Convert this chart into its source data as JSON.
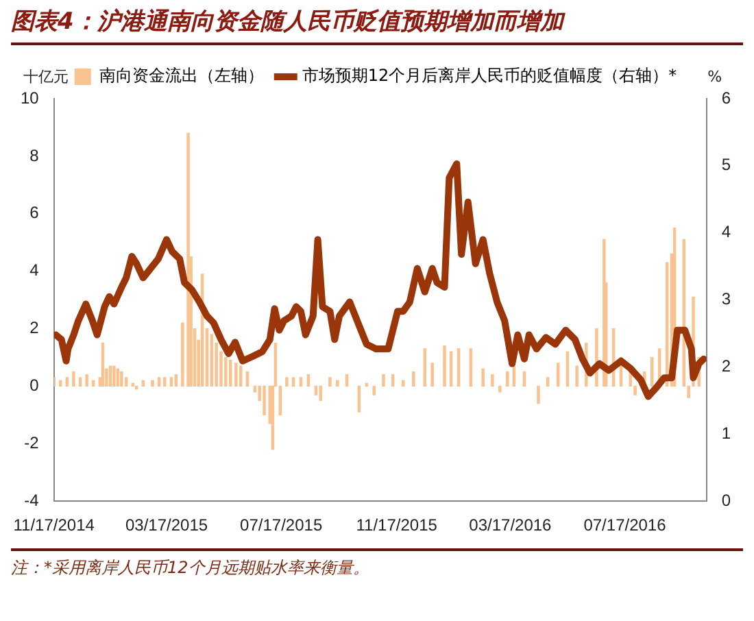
{
  "chart_data": {
    "type": "bar",
    "title": "图表4：沪港通南向资金随人民币贬值预期增加而增加",
    "ylabel": "十亿元",
    "y2label": "%",
    "annotations": [
      "注：*采用离岸人民币12个月远期贴水率来衡量。"
    ],
    "xlim": [
      "2014-11-17",
      "2016-10-12"
    ],
    "xticks": [
      {
        "value": "2014-11-17",
        "label": "11/17/2014"
      },
      {
        "value": "2015-03-17",
        "label": "03/17/2015"
      },
      {
        "value": "2015-07-17",
        "label": "07/17/2015"
      },
      {
        "value": "2015-11-17",
        "label": "11/17/2015"
      },
      {
        "value": "2016-03-17",
        "label": "03/17/2016"
      },
      {
        "value": "2016-07-17",
        "label": "07/17/2016"
      }
    ],
    "ylim": [
      -4,
      10
    ],
    "yticks": [
      -4,
      -2,
      0,
      2,
      4,
      6,
      8,
      10
    ],
    "y2lim": [
      0,
      6
    ],
    "y2ticks": [
      0,
      1,
      2,
      3,
      4,
      5,
      6
    ],
    "grid": false,
    "legend": "top",
    "marker": "none",
    "series": [
      {
        "name": "南向资金流出（左轴）",
        "color": "#f8c391",
        "x": [
          "2014-11-17",
          "2014-11-24",
          "2014-12-01",
          "2014-12-08",
          "2014-12-15",
          "2014-12-22",
          "2014-12-29",
          "2015-01-05",
          "2015-01-08",
          "2015-01-12",
          "2015-01-16",
          "2015-01-20",
          "2015-01-24",
          "2015-01-28",
          "2015-02-02",
          "2015-02-09",
          "2015-02-13",
          "2015-02-20",
          "2015-03-02",
          "2015-03-09",
          "2015-03-15",
          "2015-03-22",
          "2015-03-27",
          "2015-04-03",
          "2015-04-09",
          "2015-04-12",
          "2015-04-16",
          "2015-04-20",
          "2015-04-24",
          "2015-04-29",
          "2015-05-04",
          "2015-05-09",
          "2015-05-14",
          "2015-05-19",
          "2015-05-24",
          "2015-05-30",
          "2015-06-04",
          "2015-06-11",
          "2015-06-19",
          "2015-06-24",
          "2015-06-29",
          "2015-07-05",
          "2015-07-08",
          "2015-07-11",
          "2015-07-16",
          "2015-07-23",
          "2015-07-30",
          "2015-08-07",
          "2015-08-15",
          "2015-08-23",
          "2015-08-28",
          "2015-09-07",
          "2015-09-15",
          "2015-09-25",
          "2015-10-08",
          "2015-10-16",
          "2015-10-24",
          "2015-11-03",
          "2015-11-13",
          "2015-11-24",
          "2015-12-05",
          "2015-12-17",
          "2015-12-25",
          "2016-01-07",
          "2016-01-14",
          "2016-01-22",
          "2016-02-04",
          "2016-02-17",
          "2016-02-27",
          "2016-03-06",
          "2016-03-14",
          "2016-03-21",
          "2016-04-01",
          "2016-04-16",
          "2016-04-26",
          "2016-05-07",
          "2016-05-17",
          "2016-05-27",
          "2016-06-06",
          "2016-06-17",
          "2016-06-25",
          "2016-06-27",
          "2016-07-05",
          "2016-07-13",
          "2016-07-23",
          "2016-07-28",
          "2016-08-07",
          "2016-08-15",
          "2016-08-23",
          "2016-08-31",
          "2016-09-05",
          "2016-09-08",
          "2016-09-13",
          "2016-09-18",
          "2016-09-23",
          "2016-09-28",
          "2016-10-04"
        ],
        "values": [
          0.3,
          0.2,
          0.3,
          0.5,
          0.3,
          0.4,
          0.2,
          0.3,
          1.5,
          0.6,
          0.7,
          0.7,
          0.6,
          0.5,
          0.3,
          0.1,
          -0.1,
          0.2,
          0.2,
          0.3,
          0.3,
          0.3,
          0.4,
          2.2,
          8.8,
          4.5,
          2.0,
          1.6,
          3.9,
          2.0,
          1.8,
          1.5,
          1.2,
          1.0,
          0.9,
          0.8,
          0.7,
          0.5,
          -0.2,
          -0.5,
          -1.0,
          -1.3,
          -2.2,
          1.5,
          -1.0,
          0.3,
          0.3,
          0.3,
          0.4,
          -0.3,
          -0.5,
          0.3,
          0.2,
          0.4,
          -0.9,
          0.1,
          -0.3,
          0.4,
          0.4,
          0.2,
          0.5,
          1.3,
          0.8,
          1.4,
          1.2,
          1.3,
          1.3,
          0.6,
          0.4,
          -0.2,
          0.5,
          0.7,
          0.5,
          -0.6,
          0.3,
          0.8,
          1.2,
          0.7,
          1.5,
          2.0,
          5.1,
          3.6,
          2.0,
          1.0,
          0.6,
          -0.3,
          0.5,
          1.0,
          1.3,
          4.3,
          4.6,
          5.5,
          null,
          5.1,
          -0.4,
          3.1,
          1.0
        ]
      },
      {
        "name": "市场预期12个月后离岸人民币的贬值幅度（右轴）*",
        "type": "line",
        "axis": "y2",
        "color": "#9a3609",
        "x": [
          "2014-11-19",
          "2014-11-25",
          "2014-11-30",
          "2014-12-02",
          "2014-12-08",
          "2014-12-13",
          "2014-12-21",
          "2014-12-28",
          "2015-01-02",
          "2015-01-10",
          "2015-01-15",
          "2015-01-20",
          "2015-01-28",
          "2015-02-02",
          "2015-02-08",
          "2015-02-13",
          "2015-02-20",
          "2015-02-28",
          "2015-03-08",
          "2015-03-17",
          "2015-03-23",
          "2015-03-31",
          "2015-04-05",
          "2015-04-13",
          "2015-04-21",
          "2015-04-29",
          "2015-05-06",
          "2015-05-14",
          "2015-05-22",
          "2015-05-29",
          "2015-06-06",
          "2015-06-17",
          "2015-06-27",
          "2015-07-05",
          "2015-07-10",
          "2015-07-15",
          "2015-07-20",
          "2015-07-28",
          "2015-08-02",
          "2015-08-07",
          "2015-08-12",
          "2015-08-20",
          "2015-08-25",
          "2015-08-30",
          "2015-09-07",
          "2015-09-12",
          "2015-09-17",
          "2015-09-28",
          "2015-10-08",
          "2015-10-16",
          "2015-10-26",
          "2015-11-08",
          "2015-11-18",
          "2015-11-24",
          "2015-12-01",
          "2015-12-09",
          "2015-12-17",
          "2015-12-25",
          "2015-12-30",
          "2016-01-07",
          "2016-01-12",
          "2016-01-20",
          "2016-01-25",
          "2016-02-01",
          "2016-02-09",
          "2016-02-17",
          "2016-02-24",
          "2016-03-03",
          "2016-03-11",
          "2016-03-19",
          "2016-03-25",
          "2016-04-01",
          "2016-04-06",
          "2016-04-14",
          "2016-04-24",
          "2016-05-04",
          "2016-05-15",
          "2016-05-25",
          "2016-06-02",
          "2016-06-10",
          "2016-06-20",
          "2016-06-30",
          "2016-07-13",
          "2016-07-23",
          "2016-08-03",
          "2016-08-11",
          "2016-08-20",
          "2016-08-28",
          "2016-09-05",
          "2016-09-11",
          "2016-09-19",
          "2016-09-26",
          "2016-09-28",
          "2016-10-04",
          "2016-10-09"
        ],
        "values": [
          2.48,
          2.41,
          2.09,
          2.27,
          2.48,
          2.69,
          2.94,
          2.69,
          2.48,
          2.9,
          3.05,
          2.94,
          3.19,
          3.33,
          3.65,
          3.54,
          3.33,
          3.47,
          3.61,
          3.9,
          3.72,
          3.61,
          3.26,
          3.15,
          2.97,
          2.76,
          2.66,
          2.41,
          2.2,
          2.37,
          2.09,
          2.16,
          2.23,
          2.41,
          2.87,
          2.55,
          2.69,
          2.76,
          2.9,
          2.83,
          2.48,
          2.76,
          3.9,
          2.9,
          2.83,
          2.41,
          2.76,
          2.97,
          2.62,
          2.34,
          2.27,
          2.27,
          2.83,
          2.83,
          2.97,
          3.47,
          3.12,
          3.47,
          3.26,
          3.19,
          4.82,
          5.03,
          3.68,
          4.46,
          3.54,
          3.9,
          3.4,
          2.97,
          2.69,
          2.05,
          2.48,
          2.12,
          2.48,
          2.27,
          2.44,
          2.34,
          2.55,
          2.41,
          2.12,
          1.91,
          2.05,
          1.95,
          2.09,
          1.98,
          1.81,
          1.56,
          1.7,
          1.84,
          1.84,
          2.55,
          2.55,
          2.27,
          1.84,
          2.05,
          2.12
        ]
      }
    ]
  }
}
